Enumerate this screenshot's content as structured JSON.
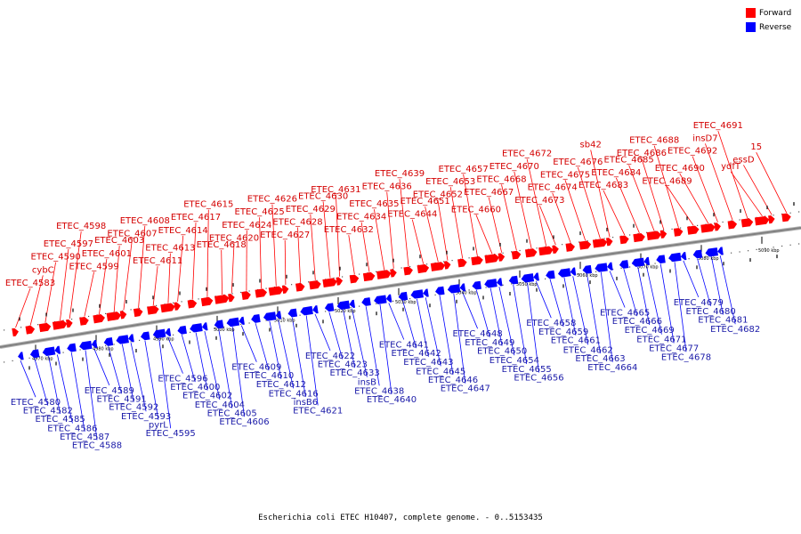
{
  "title": "Escherichia coli ETEC H10407, complete genome. - 0..5153435",
  "legend": [
    {
      "label": "Forward",
      "color": "#ff0000"
    },
    {
      "label": "Reverse",
      "color": "#0000ff"
    }
  ],
  "colors": {
    "forward": "#ff0000",
    "reverse": "#0000ff",
    "forward_label": "#d40000",
    "reverse_label": "#1a1aa8",
    "backbone": "#808080"
  },
  "ticks": [
    "4970 kbp",
    "4980 kbp",
    "4990 kbp",
    "5000 kbp",
    "5010 kbp",
    "5020 kbp",
    "5030 kbp",
    "5040 kbp",
    "5050 kbp",
    "5060 kbp",
    "5070 kbp",
    "5080 kbp",
    "5090 kbp"
  ],
  "forward_labels": [
    "ETEC_4583",
    "cybC",
    "ETEC_4590",
    "ETEC_4597",
    "ETEC_4598",
    "ETEC_4599",
    "ETEC_4601",
    "ETEC_4603",
    "ETEC_4607",
    "ETEC_4608",
    "ETEC_4611",
    "ETEC_4613",
    "ETEC_4614",
    "ETEC_4617",
    "ETEC_4615",
    "ETEC_4618",
    "ETEC_4620",
    "ETEC_4624",
    "ETEC_4625",
    "ETEC_4626",
    "ETEC_4627",
    "ETEC_4628",
    "ETEC_4629",
    "ETEC_4630",
    "ETEC_4631",
    "ETEC_4632",
    "ETEC_4634",
    "ETEC_4635",
    "ETEC_4636",
    "ETEC_4639",
    "ETEC_4644",
    "ETEC_4651",
    "ETEC_4652",
    "ETEC_4653",
    "ETEC_4657",
    "ETEC_4660",
    "ETEC_4667",
    "ETEC_4668",
    "ETEC_4670",
    "ETEC_4672",
    "ETEC_4673",
    "ETEC_4674",
    "ETEC_4675",
    "ETEC_4676",
    "sb42",
    "ETEC_4683",
    "ETEC_4684",
    "ETEC_4685",
    "ETEC_4686",
    "ETEC_4688",
    "ETEC_4689",
    "ETEC_4690",
    "ETEC_4692",
    "insD7",
    "ETEC_4691",
    "ydfT",
    "essD",
    "15"
  ],
  "reverse_labels": [
    "ETEC_4580",
    "ETEC_4582",
    "ETEC_4585",
    "ETEC_4586",
    "ETEC_4587",
    "ETEC_4588",
    "ETEC_4589",
    "ETEC_4591",
    "ETEC_4592",
    "ETEC_4593",
    "pyrL",
    "ETEC_4595",
    "ETEC_4596",
    "ETEC_4600",
    "ETEC_4602",
    "ETEC_4604",
    "ETEC_4605",
    "ETEC_4606",
    "ETEC_4609",
    "ETEC_4610",
    "ETEC_4612",
    "ETEC_4616",
    "insB6",
    "ETEC_4621",
    "ETEC_4622",
    "ETEC_4623",
    "ETEC_4633",
    "insB",
    "ETEC_4638",
    "ETEC_4640",
    "ETEC_4641",
    "ETEC_4642",
    "ETEC_4643",
    "ETEC_4645",
    "ETEC_4646",
    "ETEC_4647",
    "ETEC_4648",
    "ETEC_4649",
    "ETEC_4650",
    "ETEC_4654",
    "ETEC_4655",
    "ETEC_4656",
    "ETEC_4658",
    "ETEC_4659",
    "ETEC_4661",
    "ETEC_4662",
    "ETEC_4663",
    "ETEC_4664",
    "ETEC_4665",
    "ETEC_4666",
    "ETEC_4669",
    "ETEC_4671",
    "ETEC_4677",
    "ETEC_4678",
    "ETEC_4679",
    "ETEC_4680",
    "ETEC_4681",
    "ETEC_4682"
  ]
}
